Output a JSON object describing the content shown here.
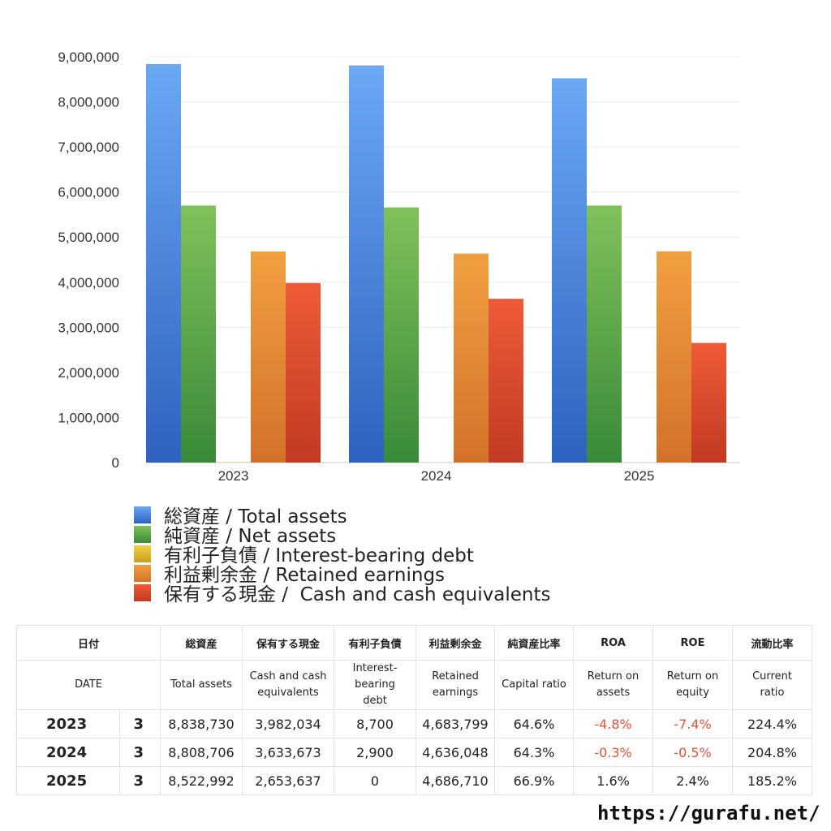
{
  "chart_data": {
    "type": "bar",
    "categories": [
      "2023",
      "2024",
      "2025"
    ],
    "ylim": [
      0,
      9000000
    ],
    "y_ticks": [
      0,
      1000000,
      2000000,
      3000000,
      4000000,
      5000000,
      6000000,
      7000000,
      8000000,
      9000000
    ],
    "y_tick_labels": [
      "0",
      "1,000,000",
      "2,000,000",
      "3,000,000",
      "4,000,000",
      "5,000,000",
      "6,000,000",
      "7,000,000",
      "8,000,000",
      "9,000,000"
    ],
    "grid": true,
    "legend_position": "bottom",
    "series": [
      {
        "name": "総資産 / Total assets",
        "values": [
          8838730,
          8808706,
          8522992
        ],
        "color_top": "#6aa8f4",
        "color_bottom": "#2f62c0"
      },
      {
        "name": "純資産 / Net assets",
        "values": [
          5700000,
          5660000,
          5700000
        ],
        "color_top": "#80c15a",
        "color_bottom": "#3a8a3a"
      },
      {
        "name": "有利子負債 / Interest-bearing debt",
        "values": [
          8700,
          2900,
          0
        ],
        "color_top": "#f1d043",
        "color_bottom": "#c9a11f"
      },
      {
        "name": "利益剰余金 / Retained earnings",
        "values": [
          4683799,
          4636048,
          4686710
        ],
        "color_top": "#f0a040",
        "color_bottom": "#d4712a"
      },
      {
        "name": "保有する現金 /  Cash and cash equivalents",
        "values": [
          3982034,
          3633673,
          2653637
        ],
        "color_top": "#ef5b37",
        "color_bottom": "#c23a22"
      }
    ]
  },
  "table": {
    "header_jp": [
      "日付",
      "総資産",
      "保有する現金",
      "有利子負債",
      "利益剰余金",
      "純資産比率",
      "ROA",
      "ROE",
      "流動比率"
    ],
    "header_en": [
      "DATE",
      "Total assets",
      "Cash and cash\nequivalents",
      "Interest-\nbearing\ndebt",
      "Retained\nearnings",
      "Capital ratio",
      "Return on\nassets",
      "Return on\nequity",
      "Current\nratio"
    ],
    "rows": [
      {
        "year": "2023",
        "month": "3",
        "total_assets": "8,838,730",
        "cash": "3,982,034",
        "debt": "8,700",
        "retained": "4,683,799",
        "capital_ratio": "64.6%",
        "roa": "-4.8%",
        "roe": "-7.4%",
        "current_ratio": "224.4%"
      },
      {
        "year": "2024",
        "month": "3",
        "total_assets": "8,808,706",
        "cash": "3,633,673",
        "debt": "2,900",
        "retained": "4,636,048",
        "capital_ratio": "64.3%",
        "roa": "-0.3%",
        "roe": "-0.5%",
        "current_ratio": "204.8%"
      },
      {
        "year": "2025",
        "month": "3",
        "total_assets": "8,522,992",
        "cash": "2,653,637",
        "debt": "0",
        "retained": "4,686,710",
        "capital_ratio": "66.9%",
        "roa": "1.6%",
        "roe": "2.4%",
        "current_ratio": "185.2%"
      }
    ]
  },
  "footer": {
    "url": "https://gurafu.net/"
  },
  "colors": {
    "negative": "#e0533c",
    "grid": "#ececec"
  }
}
